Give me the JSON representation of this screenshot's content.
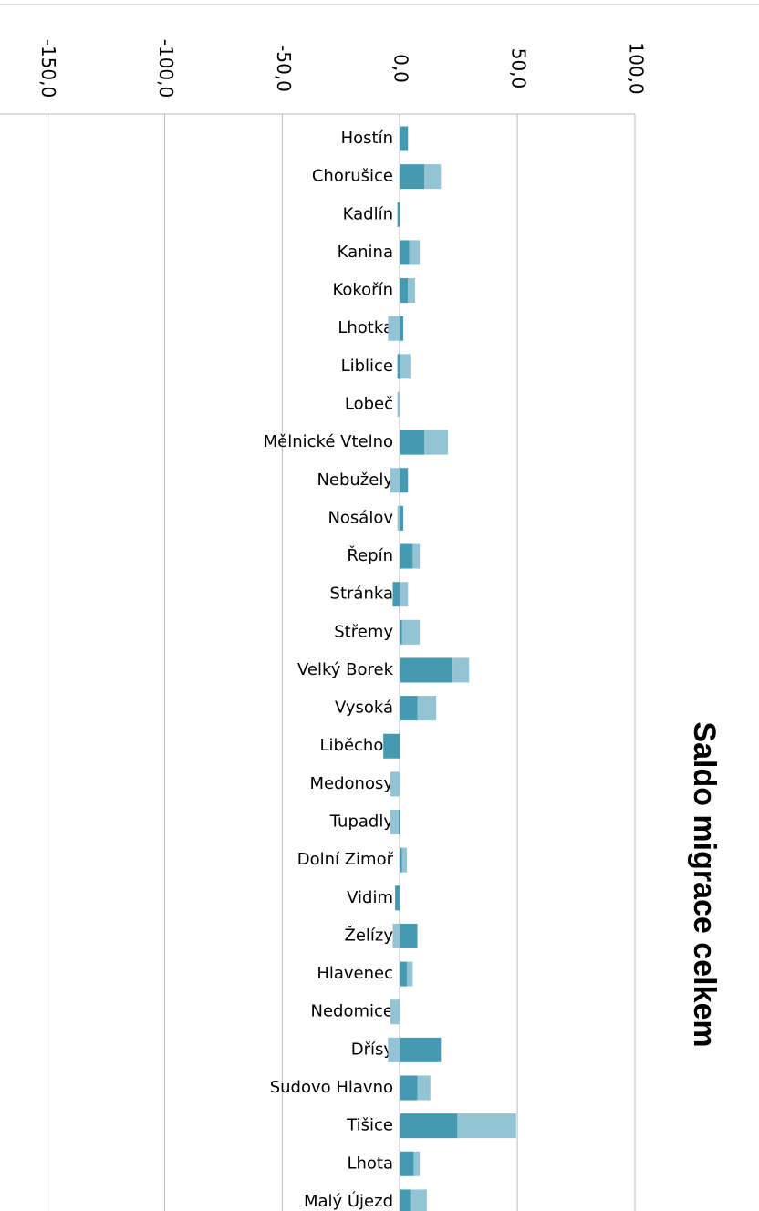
{
  "chart_data": {
    "type": "bar",
    "orientation": "horizontal",
    "stacked": true,
    "title": "Saldo migrace celkem",
    "categories": [
      "Hostín",
      "Chorušice",
      "Kadlín",
      "Kanina",
      "Kokořín",
      "Lhotka",
      "Liblice",
      "Lobeč",
      "Mělnické Vtelno",
      "Nebužely",
      "Nosálov",
      "Řepín",
      "Stránka",
      "Střemy",
      "Velký Borek",
      "Vysoká",
      "Liběchov",
      "Medonosy",
      "Tupadly",
      "Dolní Zimoř",
      "Vidim",
      "Želízy",
      "Hlavenec",
      "Nedomice",
      "Dřísy",
      "Sudovo Hlavno",
      "Tišice",
      "Lhota",
      "Malý Újezd"
    ],
    "series": [
      {
        "color": "#4599b1",
        "values": [
          3.5,
          10.5,
          -1,
          4,
          3.5,
          1.5,
          -1,
          0,
          10.5,
          3.5,
          1.5,
          5.5,
          -3,
          1,
          22.5,
          7.5,
          -7,
          0,
          -0.5,
          1,
          -2,
          7.5,
          3,
          0,
          17.5,
          7.5,
          24.5,
          6,
          4.5
        ]
      },
      {
        "color": "#93c4d6",
        "values": [
          0,
          7,
          0,
          4.5,
          3,
          -5,
          4.5,
          -1,
          10,
          -4,
          -1,
          3,
          3.5,
          7.5,
          7,
          8,
          0,
          -4,
          -3.5,
          2,
          0,
          -3,
          2.5,
          -4,
          -5,
          5.5,
          25,
          2.5,
          7
        ]
      }
    ],
    "xlim": [
      -170,
      100
    ],
    "xticks": [
      {
        "value": -150,
        "label": "-150,0"
      },
      {
        "value": -100,
        "label": "-100,0"
      },
      {
        "value": -50,
        "label": "-50,0"
      },
      {
        "value": 0,
        "label": "0,0"
      },
      {
        "value": 50,
        "label": "50,0"
      },
      {
        "value": 100,
        "label": "100,0"
      }
    ],
    "grid": true
  }
}
